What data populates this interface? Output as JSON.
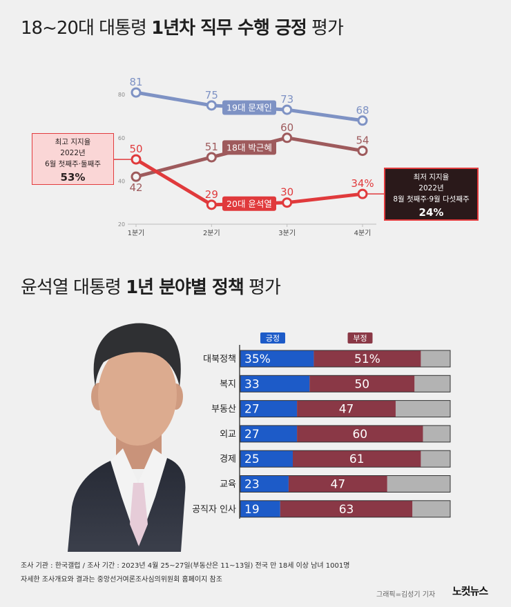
{
  "chart_data": [
    {
      "type": "line",
      "title": "18~20대 대통령 1년차 직무 수행 긍정 평가",
      "title_bold": "1년차 직무 수행 긍정",
      "categories": [
        "1분기",
        "2분기",
        "3분기",
        "4분기"
      ],
      "yticks": [
        20,
        40,
        60,
        80
      ],
      "ylim": [
        20,
        80
      ],
      "grid": false,
      "legend": "inline",
      "series": [
        {
          "name": "19대 문재인",
          "values": [
            81,
            75,
            73,
            68
          ],
          "labels": [
            "81",
            "75",
            "73",
            "68"
          ],
          "color": "#7E92C4"
        },
        {
          "name": "18대 박근혜",
          "values": [
            42,
            51,
            60,
            54
          ],
          "labels": [
            "42",
            "51",
            "60",
            "54"
          ],
          "color": "#9E5A5C"
        },
        {
          "name": "20대 윤석열",
          "values": [
            50,
            29,
            30,
            34
          ],
          "labels": [
            "50",
            "29",
            "30",
            "34%"
          ],
          "color": "#E03A3C"
        }
      ],
      "annotations": [
        {
          "lines": [
            "최고 지지율",
            "2022년",
            "6월 첫째주·둘째주"
          ],
          "value": "53%"
        },
        {
          "lines": [
            "최저 지지율",
            "2022년",
            "8월 첫째주·9월 다섯째주"
          ],
          "value": "24%"
        }
      ]
    },
    {
      "type": "bar",
      "orientation": "horizontal",
      "stacked": true,
      "title": "윤석열 대통령 1년 분야별 정책 평가",
      "title_bold": "1년 분야별 정책",
      "categories": [
        "대북정책",
        "복지",
        "부동산",
        "외교",
        "경제",
        "교육",
        "공직자 인사"
      ],
      "xlim": [
        0,
        100
      ],
      "legend": "top",
      "series": [
        {
          "name": "긍정",
          "values": [
            35,
            33,
            27,
            27,
            25,
            23,
            19
          ],
          "labels": [
            "35%",
            "33",
            "27",
            "27",
            "25",
            "23",
            "19"
          ],
          "color": "#1D5BC8"
        },
        {
          "name": "부정",
          "values": [
            51,
            50,
            47,
            60,
            61,
            47,
            63
          ],
          "labels": [
            "51%",
            "50",
            "47",
            "60",
            "61",
            "47",
            "63"
          ],
          "color": "#8A3846"
        }
      ],
      "remainder_color": "#B3B3B3"
    }
  ],
  "footer": {
    "source": "조사 기관 : 한국갤럽 / 조사 기간 : 2023년 4월 25~27일(부동산은 11~13일) 전국 만 18세 이상 남녀 1001명",
    "note": "자세한 조사개요와 결과는 중앙선거여론조사심의위원회 홈페이지 참조",
    "credit": "그래픽=김성기 기자",
    "logo": "노컷뉴스"
  }
}
